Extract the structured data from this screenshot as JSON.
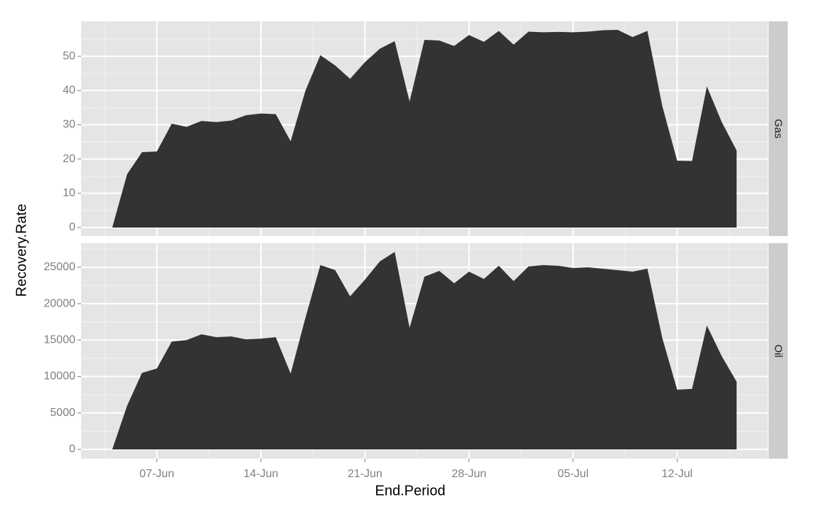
{
  "chart_data": {
    "type": "area",
    "color": "#333333",
    "grid": true,
    "xlabel": "End.Period",
    "ylabel": "Recovery.Rate",
    "x": [
      "04-Jun",
      "05-Jun",
      "06-Jun",
      "07-Jun",
      "08-Jun",
      "09-Jun",
      "10-Jun",
      "11-Jun",
      "12-Jun",
      "13-Jun",
      "14-Jun",
      "15-Jun",
      "16-Jun",
      "17-Jun",
      "18-Jun",
      "19-Jun",
      "20-Jun",
      "21-Jun",
      "22-Jun",
      "23-Jun",
      "24-Jun",
      "25-Jun",
      "26-Jun",
      "27-Jun",
      "28-Jun",
      "29-Jun",
      "30-Jun",
      "01-Jul",
      "02-Jul",
      "03-Jul",
      "04-Jul",
      "05-Jul",
      "06-Jul",
      "07-Jul",
      "08-Jul",
      "09-Jul",
      "10-Jul",
      "11-Jul",
      "12-Jul",
      "13-Jul",
      "14-Jul",
      "15-Jul",
      "16-Jul"
    ],
    "xticks": [
      "07-Jun",
      "14-Jun",
      "21-Jun",
      "28-Jun",
      "05-Jul",
      "12-Jul"
    ],
    "facets": [
      {
        "name": "Gas",
        "ylim": [
          -2.5,
          60.2
        ],
        "yticks": [
          0,
          10,
          20,
          30,
          40,
          50
        ],
        "values": [
          0,
          15.6,
          22,
          22.2,
          30.3,
          29.4,
          31.1,
          30.8,
          31.2,
          32.8,
          33.3,
          33.1,
          25.2,
          40,
          50.3,
          47.3,
          43.4,
          48.3,
          52.2,
          54.4,
          36.8,
          54.8,
          54.6,
          53,
          56.2,
          54.2,
          57.4,
          53.4,
          57.2,
          57,
          57.1,
          57,
          57.2,
          57.6,
          57.7,
          55.6,
          57.4,
          35.5,
          19.5,
          19.4,
          41.2,
          30.8,
          22.5
        ]
      },
      {
        "name": "Oil",
        "ylim": [
          -1270,
          28300
        ],
        "yticks": [
          0,
          5000,
          10000,
          15000,
          20000,
          25000
        ],
        "values": [
          0,
          6000,
          10500,
          11100,
          14800,
          15000,
          15800,
          15400,
          15500,
          15100,
          15200,
          15400,
          10400,
          18100,
          25300,
          24600,
          21000,
          23300,
          25800,
          27100,
          16700,
          23700,
          24500,
          22800,
          24400,
          23400,
          25200,
          23100,
          25100,
          25300,
          25200,
          24900,
          25000,
          24800,
          24600,
          24400,
          24800,
          15300,
          8200,
          8300,
          17000,
          12800,
          9300
        ]
      }
    ]
  }
}
